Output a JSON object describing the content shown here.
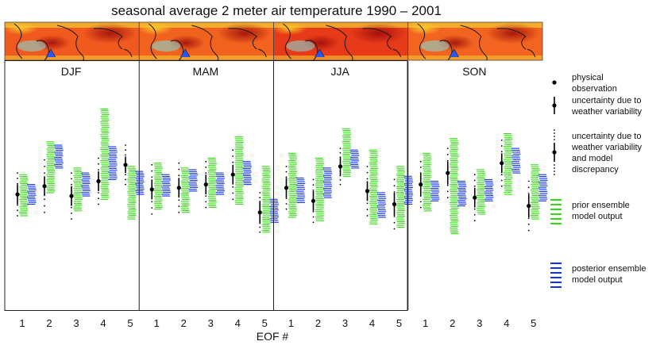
{
  "chart_data": {
    "type": "scatter",
    "title": "seasonal average 2 meter air temperature 1990 – 2001",
    "xlabel": "EOF #",
    "ylabel": "",
    "grid": false,
    "panels": [
      "DJF",
      "MAM",
      "JJA",
      "SON"
    ],
    "categories": [
      "1",
      "2",
      "3",
      "4",
      "5"
    ],
    "ylim": [
      0,
      100
    ],
    "legend": {
      "placement": "right",
      "entries": [
        {
          "label": [
            "physical",
            "observation"
          ],
          "symbol": "dot"
        },
        {
          "label": [
            "uncertainty due to",
            "weather variability"
          ],
          "symbol": "dot-with-bar"
        },
        {
          "label": [
            "uncertainty due to",
            "weather variability",
            "and model",
            "discrepancy"
          ],
          "symbol": "dot-with-bar-and-dots"
        },
        {
          "label": [
            "prior ensemble",
            "model output"
          ],
          "symbol": "green-dashes"
        },
        {
          "label": [
            "posterior ensemble",
            "model output"
          ],
          "symbol": "blue-dashes"
        }
      ]
    },
    "colors": {
      "prior": "#33dd11",
      "posterior": "#1133ee",
      "observation": "#000000"
    },
    "maps": {
      "DJF": {
        "base": "#f05a1e",
        "accent": "#cf1a10"
      },
      "MAM": {
        "base": "#f2621f",
        "accent": "#d52510"
      },
      "JJA": {
        "base": "#e63a18",
        "accent": "#b40e0c"
      },
      "SON": {
        "base": "#f2641f",
        "accent": "#d52510"
      }
    },
    "series": [
      {
        "name": "observation",
        "panels": {
          "DJF": [
            42,
            47,
            41,
            50,
            60
          ],
          "MAM": [
            45,
            46,
            48,
            54,
            31
          ],
          "JJA": [
            46,
            38,
            59,
            44,
            36
          ],
          "SON": [
            48,
            55,
            40,
            61,
            35
          ]
        }
      },
      {
        "name": "weather variability half-width",
        "panels": {
          "DJF": [
            6,
            6,
            6,
            6,
            5
          ],
          "MAM": [
            6,
            6,
            6,
            6,
            7
          ],
          "JJA": [
            6,
            6,
            6,
            6,
            7
          ],
          "SON": [
            7,
            7,
            6,
            6,
            7
          ]
        }
      },
      {
        "name": "weather variability and model discrepancy half-width",
        "panels": {
          "DJF": [
            13,
            16,
            14,
            14,
            12
          ],
          "MAM": [
            15,
            15,
            14,
            15,
            12
          ],
          "JJA": [
            13,
            13,
            11,
            15,
            15
          ],
          "SON": [
            14,
            15,
            14,
            14,
            15
          ]
        }
      },
      {
        "name": "prior ensemble",
        "panels": {
          "DJF": [
            [
              29,
              54
            ],
            [
              43,
              74
            ],
            [
              32,
              58
            ],
            [
              39,
              94
            ],
            [
              27,
              59
            ]
          ],
          "MAM": [
            [
              33,
              61
            ],
            [
              31,
              58
            ],
            [
              34,
              64
            ],
            [
              36,
              77
            ],
            [
              19,
              59
            ]
          ],
          "JJA": [
            [
              28,
              67
            ],
            [
              26,
              64
            ],
            [
              53,
              82
            ],
            [
              24,
              69
            ],
            [
              22,
              59
            ]
          ],
          "SON": [
            [
              32,
              67
            ],
            [
              18,
              76
            ],
            [
              30,
              57
            ],
            [
              42,
              79
            ],
            [
              27,
              60
            ]
          ]
        }
      },
      {
        "name": "posterior ensemble",
        "panels": {
          "DJF": [
            [
              36,
              48
            ],
            [
              58,
              72
            ],
            [
              41,
              55
            ],
            [
              51,
              71
            ],
            [
              42,
              56
            ]
          ],
          "MAM": [
            [
              41,
              54
            ],
            [
              44,
              57
            ],
            [
              42,
              55
            ],
            [
              48,
              62
            ],
            [
              25,
              39
            ]
          ],
          "JJA": [
            [
              37,
              52
            ],
            [
              40,
              58
            ],
            [
              58,
              69
            ],
            [
              28,
              43
            ],
            [
              36,
              53
            ]
          ],
          "SON": [
            [
              38,
              50
            ],
            [
              35,
              50
            ],
            [
              38,
              51
            ],
            [
              55,
              70
            ],
            [
              38,
              54
            ]
          ]
        }
      }
    ]
  }
}
